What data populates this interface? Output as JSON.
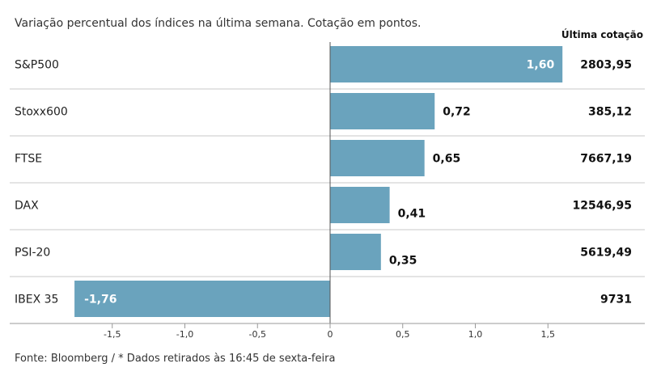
{
  "chart_data": {
    "type": "bar",
    "orientation": "horizontal",
    "title": "Variação percentual dos índices na última semana. Cotação em pontos.",
    "quote_column_header": "Última cotação",
    "categories": [
      "S&P500",
      "Stoxx600",
      "FTSE",
      "DAX",
      "PSI-20",
      "IBEX 35"
    ],
    "values": [
      1.6,
      0.72,
      0.65,
      0.41,
      0.35,
      -1.76
    ],
    "value_labels": [
      "1,60",
      "0,72",
      "0,65",
      "0,41",
      "0,35",
      "-1,76"
    ],
    "last_quotes": [
      "2803,95",
      "385,12",
      "7667,19",
      "12546,95",
      "5619,49",
      "9731"
    ],
    "xlim": [
      -1.76,
      2.2
    ],
    "xticks": [
      -1.5,
      -1.0,
      -0.5,
      0,
      0.5,
      1.0,
      1.5
    ],
    "xtick_labels": [
      "-1,5",
      "-1,0",
      "-0,5",
      "0",
      "0,5",
      "1,0",
      "1,5"
    ],
    "bar_color": "#6aa3bd",
    "source": "Fonte: Bloomberg / * Dados retirados às 16:45 de sexta-feira"
  }
}
